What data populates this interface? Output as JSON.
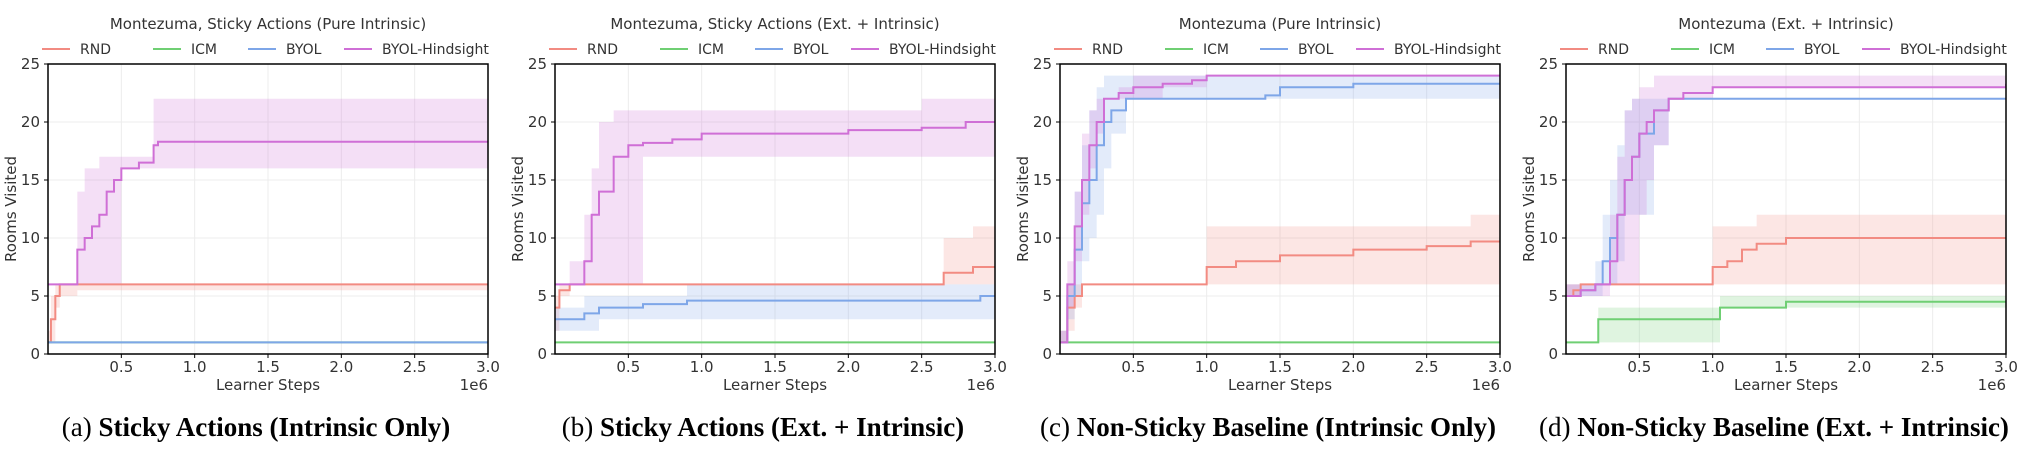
{
  "colors": {
    "RND": "#f28b82",
    "ICM": "#6fcf73",
    "BYOL": "#7ea6e8",
    "BYOL-Hindsight": "#cf6fd6"
  },
  "chart_data": [
    {
      "type": "line",
      "title": "Montezuma, Sticky Actions (Pure Intrinsic)",
      "xlabel": "Learner Steps",
      "ylabel": "Rooms Visited",
      "xscale_label": "1e6",
      "xlim": [
        0,
        3.0
      ],
      "ylim": [
        0,
        25
      ],
      "xticks": [
        "0.5",
        "1.0",
        "1.5",
        "2.0",
        "2.5",
        "3.0"
      ],
      "yticks": [
        "0",
        "5",
        "10",
        "15",
        "20",
        "25"
      ],
      "legend": [
        "RND",
        "ICM",
        "BYOL",
        "BYOL-Hindsight"
      ],
      "caption": {
        "letter": "(a)",
        "text": "Sticky Actions (Intrinsic Only)"
      },
      "series": [
        {
          "name": "RND",
          "x": [
            0,
            0.02,
            0.05,
            0.08,
            0.12,
            0.2,
            3.0
          ],
          "y": [
            1,
            3,
            5,
            6,
            6,
            6,
            6
          ],
          "lower": [
            1,
            1,
            4,
            5,
            5,
            5.5,
            6
          ],
          "upper": [
            2,
            5,
            6,
            6,
            6,
            6,
            6
          ]
        },
        {
          "name": "ICM",
          "x": [
            0,
            3.0
          ],
          "y": [
            1,
            1
          ],
          "lower": [
            1,
            1
          ],
          "upper": [
            1,
            1
          ]
        },
        {
          "name": "BYOL",
          "x": [
            0,
            3.0
          ],
          "y": [
            1,
            1
          ],
          "lower": [
            1,
            1
          ],
          "upper": [
            1,
            1
          ]
        },
        {
          "name": "BYOL-Hindsight",
          "x": [
            0,
            0.12,
            0.2,
            0.25,
            0.3,
            0.35,
            0.4,
            0.45,
            0.5,
            0.62,
            0.72,
            0.75,
            3.0
          ],
          "y": [
            6,
            6,
            9,
            10,
            11,
            12,
            14,
            15,
            16,
            16.5,
            18,
            18.3,
            18.3
          ],
          "lower": [
            6,
            6,
            6,
            6,
            6,
            6,
            6,
            6,
            16,
            16,
            16,
            16,
            16
          ],
          "upper": [
            6,
            6,
            14,
            16,
            16,
            17,
            17,
            17,
            17,
            17,
            22,
            22,
            22
          ]
        }
      ]
    },
    {
      "type": "line",
      "title": "Montezuma, Sticky Actions (Ext. + Intrinsic)",
      "xlabel": "Learner Steps",
      "ylabel": "Rooms Visited",
      "xscale_label": "1e6",
      "xlim": [
        0,
        3.0
      ],
      "ylim": [
        0,
        25
      ],
      "xticks": [
        "0.5",
        "1.0",
        "1.5",
        "2.0",
        "2.5",
        "3.0"
      ],
      "yticks": [
        "0",
        "5",
        "10",
        "15",
        "20",
        "25"
      ],
      "legend": [
        "RND",
        "ICM",
        "BYOL",
        "BYOL-Hindsight"
      ],
      "caption": {
        "letter": "(b)",
        "text": "Sticky Actions (Ext. + Intrinsic)"
      },
      "series": [
        {
          "name": "RND",
          "x": [
            0,
            0.03,
            0.1,
            2.6,
            2.65,
            2.85,
            3.0
          ],
          "y": [
            4,
            5.5,
            6,
            6,
            7,
            7.5,
            7.5
          ],
          "lower": [
            2,
            5,
            6,
            6,
            6,
            6,
            6
          ],
          "upper": [
            5,
            6,
            6,
            6,
            10,
            11,
            11
          ]
        },
        {
          "name": "ICM",
          "x": [
            0,
            3.0
          ],
          "y": [
            1,
            1
          ],
          "lower": [
            1,
            1
          ],
          "upper": [
            1,
            1
          ]
        },
        {
          "name": "BYOL",
          "x": [
            0,
            0.2,
            0.3,
            0.6,
            0.9,
            1.4,
            2.9,
            3.0
          ],
          "y": [
            3,
            3.5,
            4,
            4.3,
            4.6,
            4.6,
            5,
            5
          ],
          "lower": [
            2,
            2,
            3,
            3,
            3,
            3,
            3,
            3
          ],
          "upper": [
            4,
            5,
            5,
            5,
            6,
            6,
            6,
            6
          ]
        },
        {
          "name": "BYOL-Hindsight",
          "x": [
            0,
            0.1,
            0.2,
            0.25,
            0.3,
            0.4,
            0.5,
            0.6,
            0.8,
            1.0,
            1.5,
            2.0,
            2.5,
            2.8,
            3.0
          ],
          "y": [
            6,
            6,
            8,
            12,
            14,
            17,
            18,
            18.2,
            18.5,
            19,
            19,
            19.3,
            19.5,
            20,
            20
          ],
          "lower": [
            6,
            6,
            6,
            6,
            6,
            6,
            6,
            17,
            17,
            17,
            17,
            17,
            17,
            17,
            17
          ],
          "upper": [
            6,
            8,
            12,
            16,
            20,
            21,
            21,
            21,
            21,
            21,
            21,
            21,
            22,
            22,
            22
          ]
        }
      ]
    },
    {
      "type": "line",
      "title": "Montezuma (Pure Intrinsic)",
      "xlabel": "Learner Steps",
      "ylabel": "Rooms Visited",
      "xscale_label": "1e6",
      "xlim": [
        0,
        3.0
      ],
      "ylim": [
        0,
        25
      ],
      "xticks": [
        "0.5",
        "1.0",
        "1.5",
        "2.0",
        "2.5",
        "3.0"
      ],
      "yticks": [
        "0",
        "5",
        "10",
        "15",
        "20",
        "25"
      ],
      "legend": [
        "RND",
        "ICM",
        "BYOL",
        "BYOL-Hindsight"
      ],
      "caption": {
        "letter": "(c)",
        "text": "Non-Sticky Baseline (Intrinsic Only)"
      },
      "series": [
        {
          "name": "RND",
          "x": [
            0,
            0.05,
            0.1,
            0.15,
            0.9,
            1.0,
            1.2,
            1.5,
            2.0,
            2.5,
            2.8,
            3.0
          ],
          "y": [
            1,
            4,
            5,
            6,
            6,
            7.5,
            8,
            8.5,
            9,
            9.3,
            9.7,
            9.7
          ],
          "lower": [
            1,
            2,
            4,
            6,
            6,
            6,
            6,
            6,
            6,
            6,
            6,
            6
          ],
          "upper": [
            2,
            6,
            6,
            6,
            6,
            11,
            11,
            11,
            11,
            11,
            12,
            12
          ]
        },
        {
          "name": "ICM",
          "x": [
            0,
            3.0
          ],
          "y": [
            1,
            1
          ],
          "lower": [
            1,
            1
          ],
          "upper": [
            1,
            1
          ]
        },
        {
          "name": "BYOL",
          "x": [
            0,
            0.05,
            0.1,
            0.15,
            0.2,
            0.25,
            0.3,
            0.35,
            0.45,
            1.0,
            1.4,
            1.5,
            2.0,
            3.0
          ],
          "y": [
            1,
            5,
            9,
            13,
            15,
            18,
            20,
            21,
            22,
            22,
            22.3,
            23,
            23.3,
            23.3
          ],
          "lower": [
            1,
            3,
            5,
            8,
            10,
            12,
            16,
            19,
            22,
            22,
            22,
            22,
            22,
            22
          ],
          "upper": [
            2,
            6,
            14,
            18,
            21,
            23,
            24,
            24,
            24,
            24,
            24,
            24,
            24,
            24
          ]
        },
        {
          "name": "BYOL-Hindsight",
          "x": [
            0,
            0.05,
            0.1,
            0.15,
            0.2,
            0.25,
            0.3,
            0.4,
            0.5,
            0.7,
            0.9,
            1.0,
            3.0
          ],
          "y": [
            1,
            6,
            11,
            15,
            18,
            20,
            22,
            22.5,
            23,
            23.3,
            23.6,
            24,
            24
          ],
          "lower": [
            1,
            4,
            8,
            12,
            16,
            19,
            22,
            22,
            22,
            23,
            23,
            24,
            24
          ],
          "upper": [
            2,
            8,
            14,
            19,
            21,
            22,
            22,
            23,
            24,
            24,
            24,
            24,
            24
          ]
        }
      ]
    },
    {
      "type": "line",
      "title": "Montezuma (Ext. + Intrinsic)",
      "xlabel": "Learner Steps",
      "ylabel": "Rooms Visited",
      "xscale_label": "1e6",
      "xlim": [
        0,
        3.0
      ],
      "ylim": [
        0,
        25
      ],
      "xticks": [
        "0.5",
        "1.0",
        "1.5",
        "2.0",
        "2.5",
        "3.0"
      ],
      "yticks": [
        "0",
        "5",
        "10",
        "15",
        "20",
        "25"
      ],
      "legend": [
        "RND",
        "ICM",
        "BYOL",
        "BYOL-Hindsight"
      ],
      "caption": {
        "letter": "(d)",
        "text": "Non-Sticky Baseline (Ext. + Intrinsic)"
      },
      "series": [
        {
          "name": "RND",
          "x": [
            0,
            0.05,
            0.1,
            0.9,
            1.0,
            1.1,
            1.2,
            1.3,
            1.5,
            3.0
          ],
          "y": [
            5,
            5.5,
            6,
            6,
            7.5,
            8,
            9,
            9.5,
            10,
            10
          ],
          "lower": [
            5,
            5,
            6,
            6,
            6,
            6,
            6,
            6,
            6,
            6
          ],
          "upper": [
            6,
            6,
            6,
            6,
            11,
            11,
            11,
            12,
            12,
            12
          ]
        },
        {
          "name": "ICM",
          "x": [
            0,
            0.2,
            0.22,
            1.0,
            1.05,
            1.5,
            3.0
          ],
          "y": [
            1,
            1,
            3,
            3,
            4,
            4.5,
            4.5
          ],
          "lower": [
            1,
            1,
            1,
            1,
            4,
            4,
            4
          ],
          "upper": [
            1,
            1,
            4,
            4,
            5,
            5,
            5
          ]
        },
        {
          "name": "BYOL",
          "x": [
            0,
            0.1,
            0.2,
            0.25,
            0.3,
            0.35,
            0.4,
            0.45,
            0.5,
            0.6,
            0.7,
            1.0,
            3.0
          ],
          "y": [
            5,
            5.5,
            6,
            8,
            10,
            12,
            15,
            17,
            19,
            21,
            22,
            22,
            22
          ],
          "lower": [
            5,
            5,
            5,
            6,
            6,
            8,
            12,
            12,
            12,
            18,
            22,
            22,
            22
          ],
          "upper": [
            6,
            6,
            8,
            12,
            15,
            18,
            21,
            22,
            22,
            22,
            22,
            22,
            22
          ]
        },
        {
          "name": "BYOL-Hindsight",
          "x": [
            0,
            0.1,
            0.2,
            0.3,
            0.35,
            0.4,
            0.45,
            0.5,
            0.55,
            0.6,
            0.7,
            0.8,
            1.0,
            3.0
          ],
          "y": [
            5,
            5.5,
            6,
            8,
            12,
            15,
            17,
            19,
            20,
            21,
            22,
            22.5,
            23,
            23.3
          ],
          "lower": [
            5,
            5,
            5,
            6,
            6,
            6,
            6,
            12,
            15,
            18,
            22,
            22,
            23,
            23
          ],
          "upper": [
            6,
            6,
            6,
            12,
            17,
            21,
            22,
            23,
            23,
            24,
            24,
            24,
            24,
            24
          ]
        }
      ]
    }
  ]
}
